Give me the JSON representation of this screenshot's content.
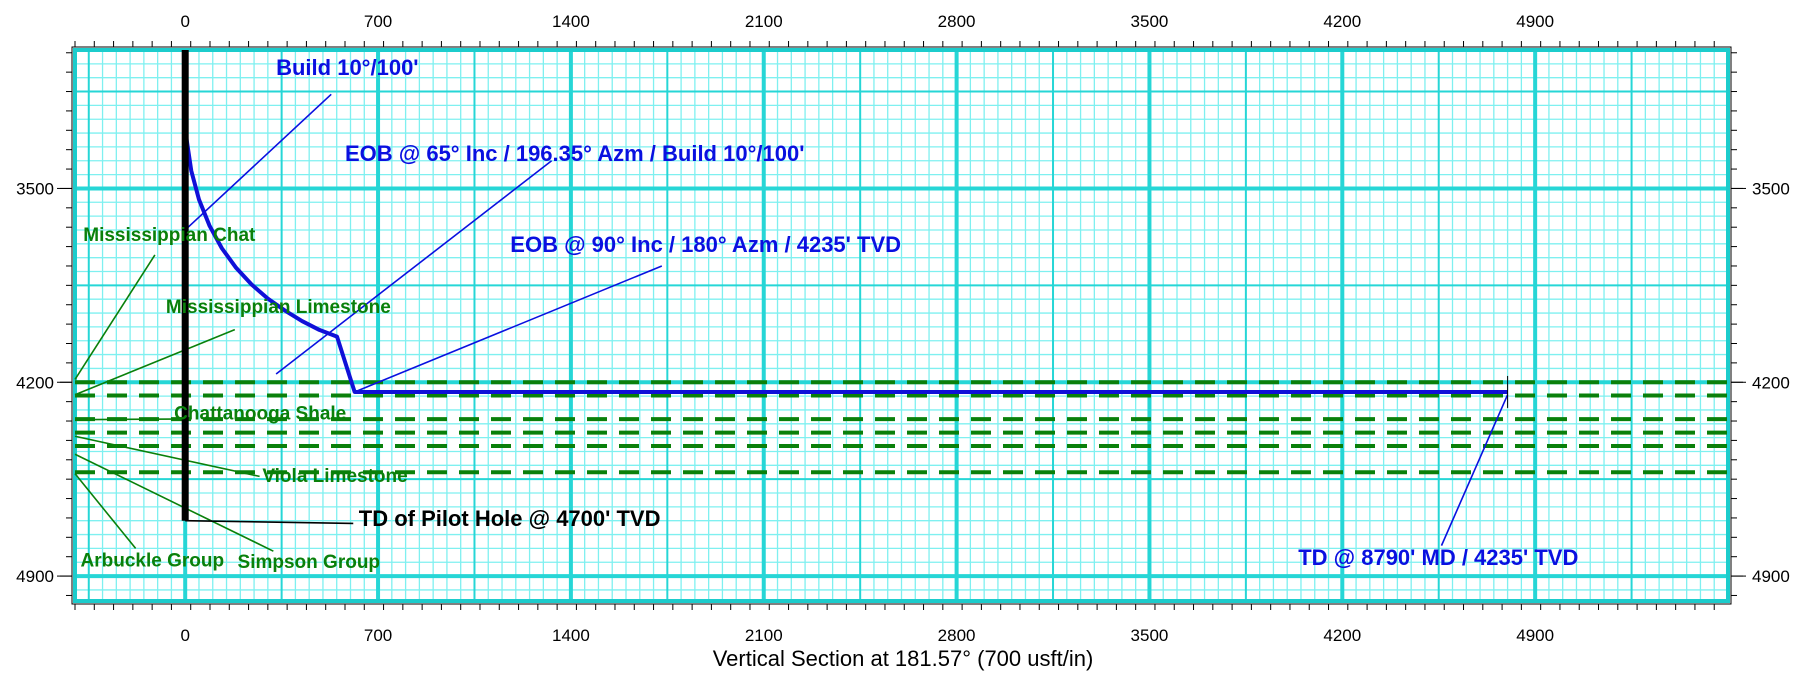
{
  "chart_data": {
    "type": "line",
    "title": "",
    "xlabel": "Vertical Section at 181.57° (700 usft/in)",
    "ylabel": "",
    "xlim": [
      -400,
      5600
    ],
    "ylim": [
      3000,
      4990
    ],
    "y_inverted": true,
    "x_ticks": [
      0,
      700,
      1400,
      2100,
      2800,
      3500,
      4200,
      4900
    ],
    "y_ticks": [
      3500,
      4200,
      4900
    ],
    "grid": true,
    "colors": {
      "background": "#ffffff",
      "grid_minor": "#7ff0f0",
      "grid_major": "#26d6d6",
      "frame": "#1ccccc",
      "wellbore": "#1010d8",
      "pilot_hole": "#000000",
      "formation": "#0a800a",
      "annotation_blue": "#0a10e0",
      "annotation_black": "#000000"
    },
    "series": [
      {
        "kind": "wellbore",
        "x": [
          0,
          0,
          5,
          22,
          50,
          88,
          133,
          185,
          241,
          300,
          362,
          424,
          487,
          551,
          615,
          4800
        ],
        "y": [
          3000,
          3200,
          3322,
          3436,
          3540,
          3634,
          3716,
          3787,
          3847,
          3898,
          3941,
          3979,
          4011,
          4035,
          4235,
          4235
        ]
      },
      {
        "kind": "pilot_hole",
        "x": [
          0,
          0
        ],
        "y": [
          3000,
          4700
        ]
      }
    ],
    "formation_tops": [
      4200,
      4248,
      4333,
      4382,
      4430,
      4525
    ],
    "annotations": [
      {
        "text": "Build 10°/100'",
        "color": "blue",
        "x": 330,
        "y": 3090,
        "leader_from": [
          530,
          3160
        ],
        "leader_to": [
          0,
          3650
        ]
      },
      {
        "text": "EOB @ 65° Inc / 196.35° Azm / Build 10°/100'",
        "color": "blue",
        "x": 580,
        "y": 3400,
        "leader_from": [
          1330,
          3400
        ],
        "leader_to": [
          330,
          4170
        ]
      },
      {
        "text": "EOB @ 90° Inc / 180° Azm / 4235' TVD",
        "color": "blue",
        "x": 1180,
        "y": 3730,
        "leader_from": [
          1730,
          3780
        ],
        "leader_to": [
          615,
          4235
        ]
      },
      {
        "text": "Mississippian Chat",
        "color": "green",
        "x": -370,
        "y": 3690,
        "leader_from": [
          -110,
          3740
        ],
        "leader_to": [
          -400,
          4190
        ]
      },
      {
        "text": "Mississippian Limestone",
        "color": "green",
        "x": -70,
        "y": 3950,
        "leader_from": [
          180,
          4010
        ],
        "leader_to": [
          -400,
          4245
        ]
      },
      {
        "text": "Chattanooga Shale",
        "color": "green",
        "x": -40,
        "y": 4335,
        "leader_from": [
          -40,
          4333
        ],
        "leader_to": [
          -400,
          4335
        ]
      },
      {
        "text": "Viola Limestone",
        "color": "green",
        "x": 280,
        "y": 4560,
        "leader_from": [
          270,
          4540
        ],
        "leader_to": [
          -400,
          4395
        ]
      },
      {
        "text": "Arbuckle Group",
        "color": "green",
        "x": -380,
        "y": 4865,
        "leader_from": [
          -180,
          4800
        ],
        "leader_to": [
          -400,
          4530
        ]
      },
      {
        "text": "Simpson Group",
        "color": "green",
        "x": 190,
        "y": 4870,
        "leader_from": [
          320,
          4810
        ],
        "leader_to": [
          -400,
          4460
        ]
      },
      {
        "text": "TD of Pilot Hole @ 4700' TVD",
        "color": "black",
        "x": 630,
        "y": 4720,
        "leader_from": [
          610,
          4710
        ],
        "leader_to": [
          0,
          4700
        ]
      },
      {
        "text": "TD @ 8790' MD / 4235' TVD",
        "color": "blue",
        "x": 4040,
        "y": 4860,
        "leader_from": [
          4560,
          4790
        ],
        "leader_to": [
          4800,
          4245
        ]
      }
    ]
  }
}
